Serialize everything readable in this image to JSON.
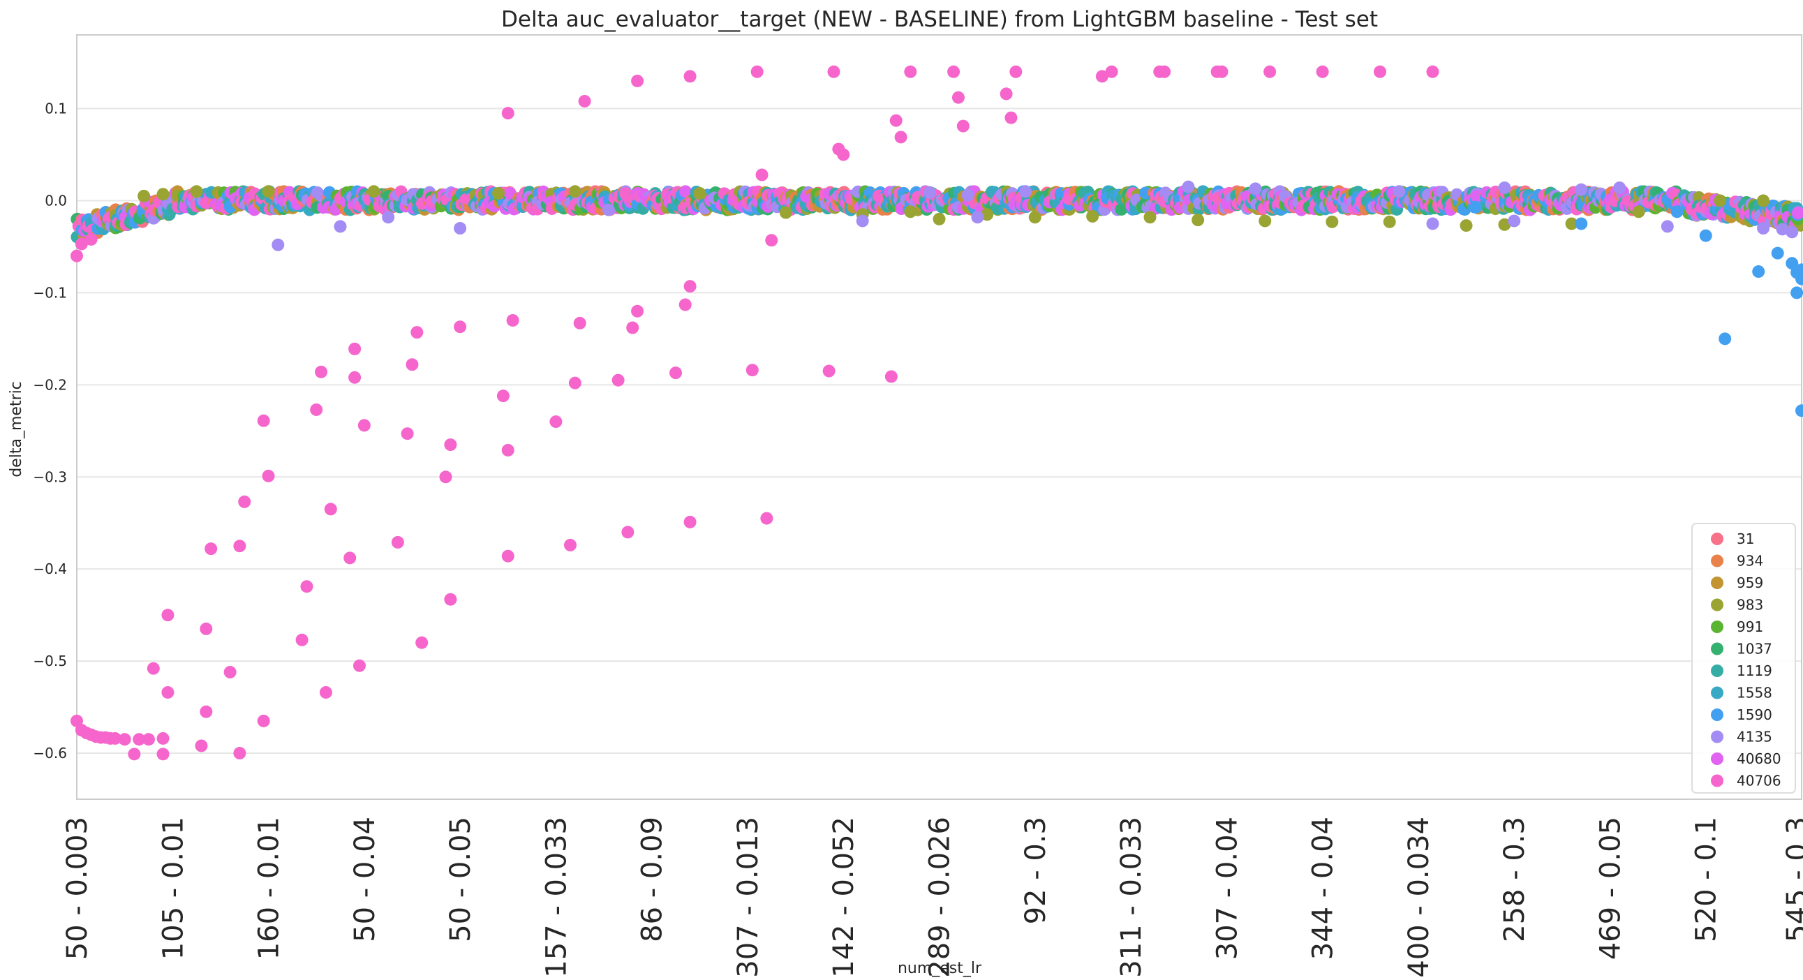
{
  "chart_data": {
    "type": "scatter",
    "title": "Delta auc_evaluator__target (NEW - BASELINE) from LightGBM baseline - Test set",
    "xlabel": "num_est_lr",
    "ylabel": "delta_metric",
    "ylim": [
      -0.65,
      0.18
    ],
    "yticks": [
      0.1,
      0.0,
      -0.1,
      -0.2,
      -0.3,
      -0.4,
      -0.5,
      -0.6
    ],
    "ytick_labels": [
      "0.1",
      "0.0",
      "−0.1",
      "−0.2",
      "−0.3",
      "−0.4",
      "−0.5",
      "−0.6"
    ],
    "n_categories": 360,
    "xtick_labels": [
      "50 - 0.003",
      "105 - 0.01",
      "160 - 0.01",
      "50 - 0.04",
      "50 - 0.05",
      "157 - 0.033",
      "86 - 0.09",
      "307 - 0.013",
      "142 - 0.052",
      "289 - 0.026",
      "92 - 0.3",
      "311 - 0.033",
      "307 - 0.04",
      "344 - 0.04",
      "400 - 0.034",
      "258 - 0.3",
      "469 - 0.05",
      "520 - 0.1",
      "545 - 0.3"
    ],
    "xtick_positions": [
      0,
      20,
      40,
      60,
      80,
      100,
      120,
      140,
      160,
      180,
      200,
      220,
      240,
      260,
      280,
      300,
      320,
      340,
      359
    ],
    "grid": "horizontal",
    "legend_position": "lower-right",
    "series": [
      {
        "name": "31",
        "color": "#f77189"
      },
      {
        "name": "934",
        "color": "#e9814a"
      },
      {
        "name": "959",
        "color": "#c39532"
      },
      {
        "name": "983",
        "color": "#9aa432"
      },
      {
        "name": "991",
        "color": "#5ab432"
      },
      {
        "name": "1037",
        "color": "#34b06f"
      },
      {
        "name": "1119",
        "color": "#36ada4"
      },
      {
        "name": "1558",
        "color": "#38a9c5"
      },
      {
        "name": "1590",
        "color": "#43a0f0"
      },
      {
        "name": "4135",
        "color": "#a38cf4"
      },
      {
        "name": "40680",
        "color": "#e163f2"
      },
      {
        "name": "40706",
        "color": "#f565cc"
      }
    ],
    "points_40706": [
      [
        0,
        -0.565
      ],
      [
        0,
        -0.06
      ],
      [
        1,
        -0.575
      ],
      [
        1,
        -0.047
      ],
      [
        2,
        -0.578
      ],
      [
        3,
        -0.58
      ],
      [
        3,
        -0.042
      ],
      [
        4,
        -0.582
      ],
      [
        5,
        -0.583
      ],
      [
        6,
        -0.583
      ],
      [
        7,
        -0.584
      ],
      [
        8,
        -0.584
      ],
      [
        10,
        -0.585
      ],
      [
        12,
        -0.601
      ],
      [
        13,
        -0.585
      ],
      [
        15,
        -0.585
      ],
      [
        16,
        -0.508
      ],
      [
        18,
        -0.584
      ],
      [
        18,
        -0.601
      ],
      [
        19,
        -0.534
      ],
      [
        19,
        -0.45
      ],
      [
        26,
        -0.592
      ],
      [
        27,
        -0.555
      ],
      [
        27,
        -0.465
      ],
      [
        28,
        -0.378
      ],
      [
        32,
        -0.512
      ],
      [
        34,
        -0.6
      ],
      [
        34,
        -0.375
      ],
      [
        35,
        -0.327
      ],
      [
        39,
        -0.565
      ],
      [
        39,
        -0.239
      ],
      [
        40,
        -0.299
      ],
      [
        47,
        -0.477
      ],
      [
        48,
        -0.419
      ],
      [
        50,
        -0.227
      ],
      [
        51,
        -0.186
      ],
      [
        52,
        -0.534
      ],
      [
        53,
        -0.335
      ],
      [
        57,
        -0.388
      ],
      [
        58,
        -0.161
      ],
      [
        58,
        -0.192
      ],
      [
        59,
        -0.505
      ],
      [
        60,
        -0.244
      ],
      [
        67,
        -0.371
      ],
      [
        69,
        -0.253
      ],
      [
        70,
        -0.178
      ],
      [
        71,
        -0.143
      ],
      [
        72,
        -0.48
      ],
      [
        77,
        -0.3
      ],
      [
        78,
        -0.265
      ],
      [
        78,
        -0.433
      ],
      [
        80,
        -0.137
      ],
      [
        89,
        -0.212
      ],
      [
        90,
        -0.271
      ],
      [
        90,
        -0.386
      ],
      [
        90,
        0.095
      ],
      [
        91,
        -0.13
      ],
      [
        100,
        -0.24
      ],
      [
        103,
        -0.374
      ],
      [
        104,
        -0.198
      ],
      [
        105,
        -0.133
      ],
      [
        106,
        0.108
      ],
      [
        113,
        -0.195
      ],
      [
        115,
        -0.36
      ],
      [
        116,
        -0.138
      ],
      [
        117,
        -0.12
      ],
      [
        117,
        0.13
      ],
      [
        125,
        -0.187
      ],
      [
        127,
        -0.113
      ],
      [
        128,
        -0.093
      ],
      [
        128,
        -0.349
      ],
      [
        128,
        0.135
      ],
      [
        141,
        -0.184
      ],
      [
        142,
        0.14
      ],
      [
        143,
        0.028
      ],
      [
        144,
        -0.345
      ],
      [
        145,
        -0.043
      ],
      [
        157,
        -0.185
      ],
      [
        158,
        0.14
      ],
      [
        159,
        0.056
      ],
      [
        160,
        0.05
      ],
      [
        170,
        -0.191
      ],
      [
        171,
        0.087
      ],
      [
        172,
        0.069
      ],
      [
        174,
        0.14
      ],
      [
        183,
        0.14
      ],
      [
        184,
        0.112
      ],
      [
        185,
        0.081
      ],
      [
        194,
        0.116
      ],
      [
        195,
        0.09
      ],
      [
        196,
        0.14
      ],
      [
        214,
        0.135
      ],
      [
        216,
        0.14
      ],
      [
        226,
        0.14
      ],
      [
        227,
        0.14
      ],
      [
        238,
        0.14
      ],
      [
        239,
        0.14
      ],
      [
        249,
        0.14
      ],
      [
        260,
        0.14
      ],
      [
        272,
        0.14
      ],
      [
        283,
        0.14
      ]
    ],
    "points_1590": [
      [
        344,
        -0.15
      ],
      [
        351,
        -0.077
      ],
      [
        355,
        -0.057
      ],
      [
        358,
        -0.068
      ],
      [
        359,
        -0.078
      ],
      [
        359,
        -0.1
      ],
      [
        360,
        -0.085
      ],
      [
        360,
        -0.075
      ],
      [
        360,
        -0.228
      ],
      [
        340,
        -0.038
      ],
      [
        314,
        -0.025
      ],
      [
        334,
        -0.012
      ],
      [
        292,
        -0.007
      ]
    ],
    "points_4135": [
      [
        42,
        -0.048
      ],
      [
        55,
        -0.028
      ],
      [
        65,
        -0.018
      ],
      [
        80,
        -0.03
      ],
      [
        111,
        -0.01
      ],
      [
        164,
        -0.022
      ],
      [
        178,
        0.009
      ],
      [
        186,
        0.006
      ],
      [
        188,
        -0.018
      ],
      [
        198,
        0.01
      ],
      [
        232,
        0.015
      ],
      [
        246,
        0.013
      ],
      [
        276,
        0.01
      ],
      [
        283,
        -0.025
      ],
      [
        298,
        0.014
      ],
      [
        300,
        -0.022
      ],
      [
        314,
        0.012
      ],
      [
        322,
        0.014
      ],
      [
        332,
        -0.028
      ],
      [
        352,
        -0.03
      ],
      [
        356,
        -0.031
      ],
      [
        358,
        -0.034
      ]
    ],
    "points_983": [
      [
        14,
        0.005
      ],
      [
        18,
        0.007
      ],
      [
        25,
        0.01
      ],
      [
        40,
        0.01
      ],
      [
        62,
        0.01
      ],
      [
        88,
        0.008
      ],
      [
        104,
        0.01
      ],
      [
        130,
        0.008
      ],
      [
        148,
        -0.013
      ],
      [
        164,
        -0.015
      ],
      [
        174,
        -0.012
      ],
      [
        180,
        -0.02
      ],
      [
        190,
        -0.015
      ],
      [
        200,
        -0.018
      ],
      [
        212,
        -0.017
      ],
      [
        224,
        -0.018
      ],
      [
        234,
        -0.021
      ],
      [
        248,
        -0.022
      ],
      [
        262,
        -0.023
      ],
      [
        274,
        -0.023
      ],
      [
        290,
        -0.027
      ],
      [
        298,
        -0.026
      ],
      [
        312,
        -0.025
      ],
      [
        326,
        -0.012
      ],
      [
        343,
        0.0
      ],
      [
        352,
        0.0
      ]
    ]
  }
}
